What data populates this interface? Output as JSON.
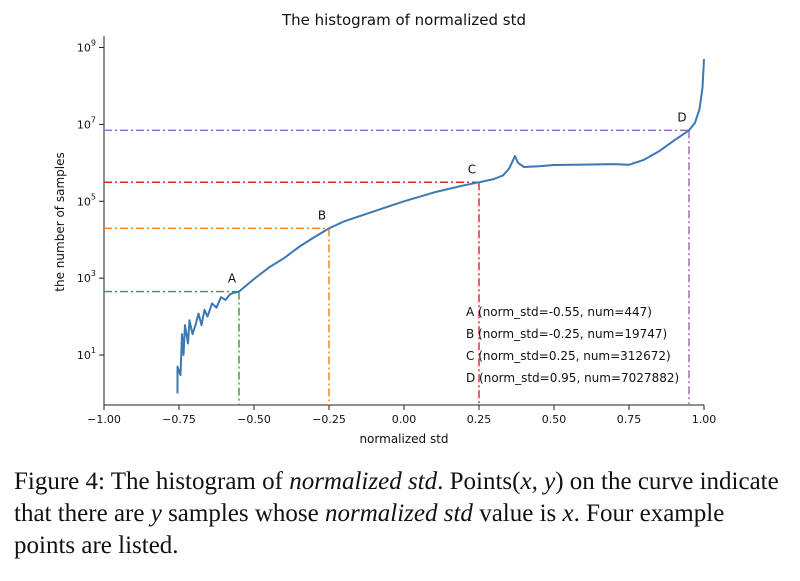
{
  "chart_data": {
    "type": "line",
    "title": "The histogram of normalized std",
    "xlabel": "normalized std",
    "ylabel": "the number of samples",
    "xlim": [
      -1.0,
      1.0
    ],
    "ylim_log10": [
      -0.3,
      9.3
    ],
    "y_scale": "log",
    "grid": false,
    "x_ticks": [
      {
        "value": -1.0,
        "label": "−1.00"
      },
      {
        "value": -0.75,
        "label": "−0.75"
      },
      {
        "value": -0.5,
        "label": "−0.50"
      },
      {
        "value": -0.25,
        "label": "−0.25"
      },
      {
        "value": 0.0,
        "label": "0.00"
      },
      {
        "value": 0.25,
        "label": "0.25"
      },
      {
        "value": 0.5,
        "label": "0.50"
      },
      {
        "value": 0.75,
        "label": "0.75"
      },
      {
        "value": 1.0,
        "label": "1.00"
      }
    ],
    "y_ticks": [
      {
        "exp": 1,
        "base": "10",
        "sup": "1"
      },
      {
        "exp": 3,
        "base": "10",
        "sup": "3"
      },
      {
        "exp": 5,
        "base": "10",
        "sup": "5"
      },
      {
        "exp": 7,
        "base": "10",
        "sup": "7"
      },
      {
        "exp": 9,
        "base": "10",
        "sup": "9"
      }
    ],
    "series": [
      {
        "color": "#3b78b4",
        "x": [
          -0.755,
          -0.755,
          -0.745,
          -0.74,
          -0.735,
          -0.73,
          -0.72,
          -0.715,
          -0.705,
          -0.695,
          -0.685,
          -0.675,
          -0.665,
          -0.655,
          -0.64,
          -0.625,
          -0.61,
          -0.595,
          -0.58,
          -0.565,
          -0.55,
          -0.5,
          -0.45,
          -0.4,
          -0.35,
          -0.3,
          -0.25,
          -0.2,
          -0.1,
          0.0,
          0.1,
          0.2,
          0.25,
          0.3,
          0.33,
          0.35,
          0.37,
          0.38,
          0.4,
          0.45,
          0.5,
          0.6,
          0.7,
          0.75,
          0.8,
          0.85,
          0.9,
          0.95,
          0.97,
          0.985,
          0.995,
          1.0
        ],
        "y": [
          1,
          5,
          3,
          35,
          10,
          60,
          20,
          80,
          35,
          60,
          120,
          60,
          150,
          100,
          220,
          170,
          320,
          270,
          380,
          420,
          447,
          950,
          1900,
          3300,
          6500,
          11500,
          19747,
          30000,
          55000,
          100000,
          170000,
          260000,
          312672,
          380000,
          470000,
          700000,
          1500000,
          1000000,
          780000,
          820000,
          880000,
          900000,
          930000,
          890000,
          1200000,
          2000000,
          3800000,
          7027882,
          11000000,
          25000000,
          90000000,
          500000000
        ]
      }
    ],
    "points": [
      {
        "label": "A",
        "x": -0.55,
        "y": 447,
        "color": "#2ca02c",
        "desc": "A (norm_std=-0.55, num=447)"
      },
      {
        "label": "B",
        "x": -0.25,
        "y": 19747,
        "color": "#ff7f0e",
        "desc": "B (norm_std=-0.25, num=19747)"
      },
      {
        "label": "C",
        "x": 0.25,
        "y": 312672,
        "color": "#d62728",
        "desc": "C (norm_std=0.25, num=312672)"
      },
      {
        "label": "D",
        "x": 0.95,
        "y": 7027882,
        "color": "#9467bd",
        "desc": "D (norm_std=0.95, num=7027882)"
      }
    ]
  },
  "caption": {
    "p1": "Figure 4: The histogram of ",
    "i1": "normalized std",
    "p2": ". Points(",
    "i2": "x, y",
    "p3": ") on the curve indicate that there are ",
    "i3": "y",
    "p4": " samples whose ",
    "i4": "normalized std",
    "p5": " value is ",
    "i5": "x",
    "p6": ". Four example points are listed."
  }
}
